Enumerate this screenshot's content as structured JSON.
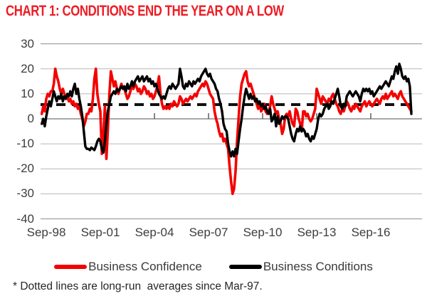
{
  "title": "CHART 1: CONDITIONS END THE YEAR ON A LOW",
  "footnote": "* Dotted lines are long-run  averages since Mar-97.",
  "colors": {
    "title_red": "#ee1c25",
    "confidence_red": "#f40000",
    "conditions_black": "#000000",
    "gridline_light": "#bfbfbf",
    "gridline_dark": "#9a9a9a",
    "zero_axis": "#8c8c8c",
    "dashed_average": "#111111",
    "axis_text": "#3d3d3d"
  },
  "chart_data": {
    "type": "line",
    "title": "CHART 1: CONDITIONS END THE YEAR ON A LOW",
    "xlabel": "",
    "ylabel": "",
    "ylim": [
      -40,
      30
    ],
    "y_ticks": [
      30,
      20,
      10,
      0,
      -10,
      -20,
      -30,
      -40
    ],
    "x_tick_labels": [
      "Sep-98",
      "Sep-01",
      "Sep-04",
      "Sep-07",
      "Sep-10",
      "Sep-13",
      "Sep-16"
    ],
    "x_tick_month_indices": [
      3,
      39,
      75,
      111,
      147,
      183,
      219
    ],
    "x_start": "Jun-98",
    "x_end": "Dec-18",
    "frequency": "monthly",
    "grid": "horizontal",
    "legend_position": "bottom",
    "long_run_average": 5.7,
    "series": [
      {
        "name": "Business Confidence",
        "color": "#f40000",
        "values": [
          2,
          5,
          3,
          8,
          10,
          9,
          11,
          11,
          14,
          20,
          17,
          15,
          12,
          10,
          12,
          10,
          8,
          9,
          7,
          8,
          6,
          7,
          5,
          6,
          4,
          5,
          2,
          0,
          -3,
          -1,
          2,
          2,
          4,
          3,
          8,
          16,
          20,
          10,
          6,
          3,
          -14,
          -6,
          5,
          -16,
          -4,
          10,
          19,
          16,
          13,
          15,
          12,
          10,
          12,
          14,
          12,
          12,
          10,
          8,
          9,
          11,
          13,
          12,
          14,
          13,
          11,
          12,
          10,
          11,
          13,
          12,
          10,
          11,
          9,
          10,
          8,
          9,
          11,
          13,
          17,
          10,
          6,
          4,
          5,
          4,
          5,
          4,
          6,
          5,
          7,
          6,
          5,
          6,
          9,
          8,
          6,
          7,
          8,
          7,
          8,
          9,
          8,
          9,
          10,
          9,
          11,
          12,
          13,
          14,
          13,
          15,
          14,
          12,
          10,
          9,
          8,
          3,
          0,
          -2,
          -5,
          -7,
          -6,
          -9,
          -8,
          -10,
          -12,
          -19,
          -25,
          -30,
          -28,
          -21,
          -9,
          0,
          9,
          14,
          16,
          18,
          19,
          15,
          13,
          14,
          12,
          10,
          8,
          6,
          4,
          6,
          3,
          4,
          6,
          3,
          2,
          3,
          5,
          9,
          6,
          4,
          2,
          3,
          0,
          -2,
          -6,
          -4,
          1,
          2,
          1,
          3,
          0,
          -2,
          -3,
          4,
          3,
          0,
          -2,
          -5,
          3,
          3,
          1,
          2,
          0,
          -1,
          0,
          2,
          4,
          12,
          10,
          8,
          6,
          9,
          8,
          7,
          6,
          8,
          7,
          9,
          10,
          8,
          6,
          5,
          3,
          2,
          4,
          3,
          5,
          7,
          6,
          4,
          3,
          5,
          4,
          6,
          5,
          4,
          3,
          5,
          6,
          7,
          5,
          6,
          7,
          6,
          5,
          6,
          7,
          8,
          7,
          6,
          8,
          9,
          8,
          10,
          8,
          9,
          10,
          11,
          9,
          10,
          9,
          8,
          10,
          11,
          9,
          8,
          7,
          6,
          5,
          4,
          3
        ]
      },
      {
        "name": "Business Conditions",
        "color": "#000000",
        "values": [
          -2,
          0,
          -3,
          1,
          4,
          7,
          5,
          8,
          11,
          9,
          7,
          9,
          8,
          10,
          7,
          9,
          8,
          10,
          9,
          11,
          9,
          12,
          14,
          10,
          12,
          8,
          5,
          1,
          -5,
          -11,
          -12,
          -12,
          -12.5,
          -11.5,
          -12,
          -12.5,
          -11,
          -9,
          -8,
          -9,
          -12,
          -13.5,
          -9,
          -2,
          3,
          6,
          9,
          10,
          11,
          10,
          12,
          11,
          12,
          13,
          12,
          13,
          11,
          14,
          12,
          13,
          15,
          13,
          15,
          16,
          17,
          15,
          16,
          17,
          15,
          16,
          17,
          15,
          16,
          14,
          15,
          13,
          14,
          12,
          10,
          9,
          8,
          9,
          8,
          10,
          12,
          13,
          12,
          14,
          13,
          12,
          13,
          14,
          20,
          17,
          13,
          12,
          14,
          13,
          15,
          14,
          13,
          15,
          14,
          15,
          16,
          15,
          17,
          18,
          19,
          20,
          18,
          17,
          18,
          16,
          15,
          14,
          12,
          11,
          8,
          6,
          3,
          -2,
          -4,
          -5,
          -10,
          -13,
          -15,
          -13,
          -15,
          -12,
          -14,
          -9,
          -4,
          0,
          5,
          9,
          12,
          10,
          8,
          10,
          8,
          9,
          7,
          8,
          6,
          7,
          5,
          6,
          4,
          5,
          3,
          2,
          4,
          -1,
          0,
          2,
          -3,
          1,
          -2,
          -1,
          1,
          0,
          1,
          1,
          0,
          -3,
          -6,
          -8,
          -9,
          -6,
          -4,
          -5,
          -3,
          -5,
          -4,
          -5,
          -7,
          -6,
          -8,
          -9,
          -7,
          -8,
          -6,
          -4,
          0,
          2,
          1,
          2,
          4,
          5,
          6,
          4,
          5,
          7,
          6,
          8,
          10,
          12,
          9,
          5,
          4,
          6,
          5,
          9,
          10,
          11,
          10,
          9,
          10,
          11,
          10,
          9,
          7,
          10,
          12,
          11,
          12,
          11,
          12,
          10,
          11,
          9,
          10,
          11,
          12,
          13,
          12,
          13,
          14,
          15,
          14,
          13,
          15,
          17,
          16,
          19,
          21,
          18,
          22,
          20,
          17,
          16,
          17,
          15,
          16,
          13,
          2
        ]
      }
    ]
  },
  "legend": {
    "items": [
      {
        "label": "Business Confidence"
      },
      {
        "label": "Business Conditions"
      }
    ]
  }
}
